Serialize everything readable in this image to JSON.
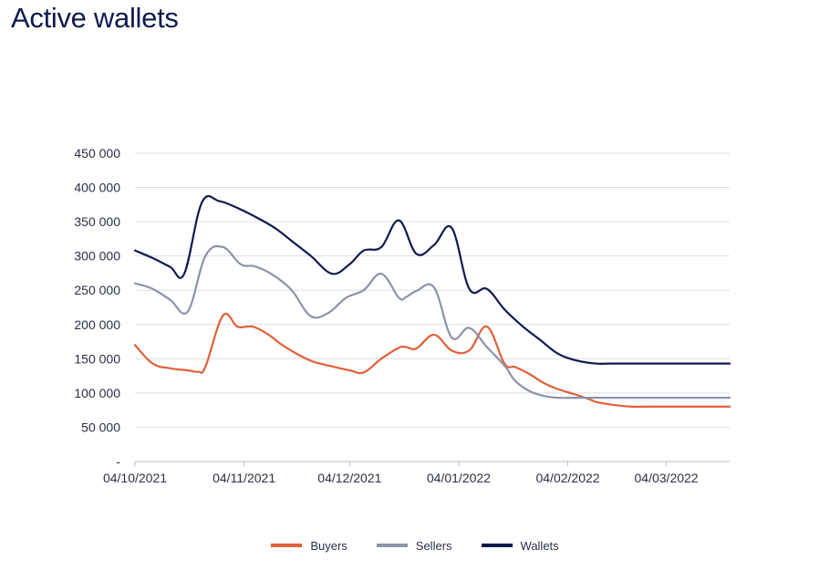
{
  "title": "Active wallets",
  "chart_data": {
    "type": "line",
    "title": "Active wallets",
    "xlabel": "",
    "ylabel": "",
    "ylim": [
      0,
      450000
    ],
    "y_ticks": [
      0,
      50000,
      100000,
      150000,
      200000,
      250000,
      300000,
      350000,
      400000,
      450000
    ],
    "y_tick_labels": [
      "-",
      "50 000",
      "100 000",
      "150 000",
      "200 000",
      "250 000",
      "300 000",
      "350 000",
      "400 000",
      "450 000"
    ],
    "x_tick_labels": [
      "04/10/2021",
      "04/11/2021",
      "04/12/2021",
      "04/01/2022",
      "04/02/2022",
      "04/03/2022"
    ],
    "x_tick_days": [
      0,
      31,
      61,
      92,
      123,
      151
    ],
    "xlim_days": [
      0,
      169
    ],
    "grid": "horizontal",
    "legend_position": "bottom-center",
    "series": [
      {
        "name": "Buyers",
        "color": "#e0603a",
        "x_days": [
          0,
          5,
          10,
          15,
          18,
          20,
          25,
          29,
          32,
          34,
          38,
          41,
          45,
          50,
          55,
          61,
          65,
          70,
          75,
          77,
          80,
          85,
          90,
          95,
          100,
          105,
          108,
          112,
          116,
          120,
          125,
          129,
          131,
          133,
          137,
          141,
          145,
          150,
          155,
          160,
          165,
          169
        ],
        "values": [
          170000,
          143000,
          136000,
          133000,
          131000,
          138000,
          213000,
          197000,
          197000,
          196000,
          185000,
          173000,
          160000,
          147000,
          140000,
          133000,
          130000,
          150000,
          166000,
          167000,
          165000,
          185000,
          162000,
          162000,
          197000,
          143000,
          138000,
          128000,
          115000,
          106000,
          98000,
          91000,
          87000,
          85000,
          82000,
          80000,
          80000,
          80000,
          80000,
          80000,
          80000,
          80000
        ]
      },
      {
        "name": "Sellers",
        "color": "#8c93a8",
        "x_days": [
          0,
          5,
          10,
          15,
          20,
          25,
          30,
          34,
          38,
          42,
          45,
          50,
          55,
          60,
          65,
          70,
          75,
          77,
          80,
          85,
          90,
          95,
          100,
          105,
          108,
          112,
          116,
          120,
          125,
          131,
          135,
          140,
          145,
          150,
          155,
          160,
          165,
          169
        ],
        "values": [
          260000,
          252000,
          236000,
          219000,
          300000,
          313000,
          288000,
          285000,
          276000,
          262000,
          247000,
          212000,
          217000,
          239000,
          250000,
          274000,
          239000,
          240000,
          249000,
          254000,
          181000,
          195000,
          167000,
          140000,
          118000,
          103000,
          96000,
          93000,
          93000,
          93000,
          93000,
          93000,
          93000,
          93000,
          93000,
          93000,
          93000,
          93000
        ]
      },
      {
        "name": "Wallets",
        "color": "#0e1a4f",
        "x_days": [
          0,
          5,
          10,
          14,
          19,
          24,
          30,
          35,
          40,
          45,
          50,
          56,
          61,
          65,
          70,
          75,
          80,
          85,
          90,
          95,
          100,
          105,
          110,
          115,
          120,
          125,
          131,
          135,
          140,
          145,
          150,
          155,
          160,
          165,
          169
        ],
        "values": [
          308000,
          297000,
          284000,
          274000,
          378000,
          380000,
          368000,
          355000,
          340000,
          320000,
          300000,
          274000,
          288000,
          308000,
          313000,
          352000,
          303000,
          316000,
          341000,
          252000,
          252000,
          222000,
          198000,
          178000,
          158000,
          148000,
          143000,
          143000,
          143000,
          143000,
          143000,
          143000,
          143000,
          143000,
          143000
        ]
      }
    ]
  },
  "legend": [
    {
      "label": "Buyers",
      "color": "#e0603a"
    },
    {
      "label": "Sellers",
      "color": "#8c93a8"
    },
    {
      "label": "Wallets",
      "color": "#0e1a4f"
    }
  ]
}
